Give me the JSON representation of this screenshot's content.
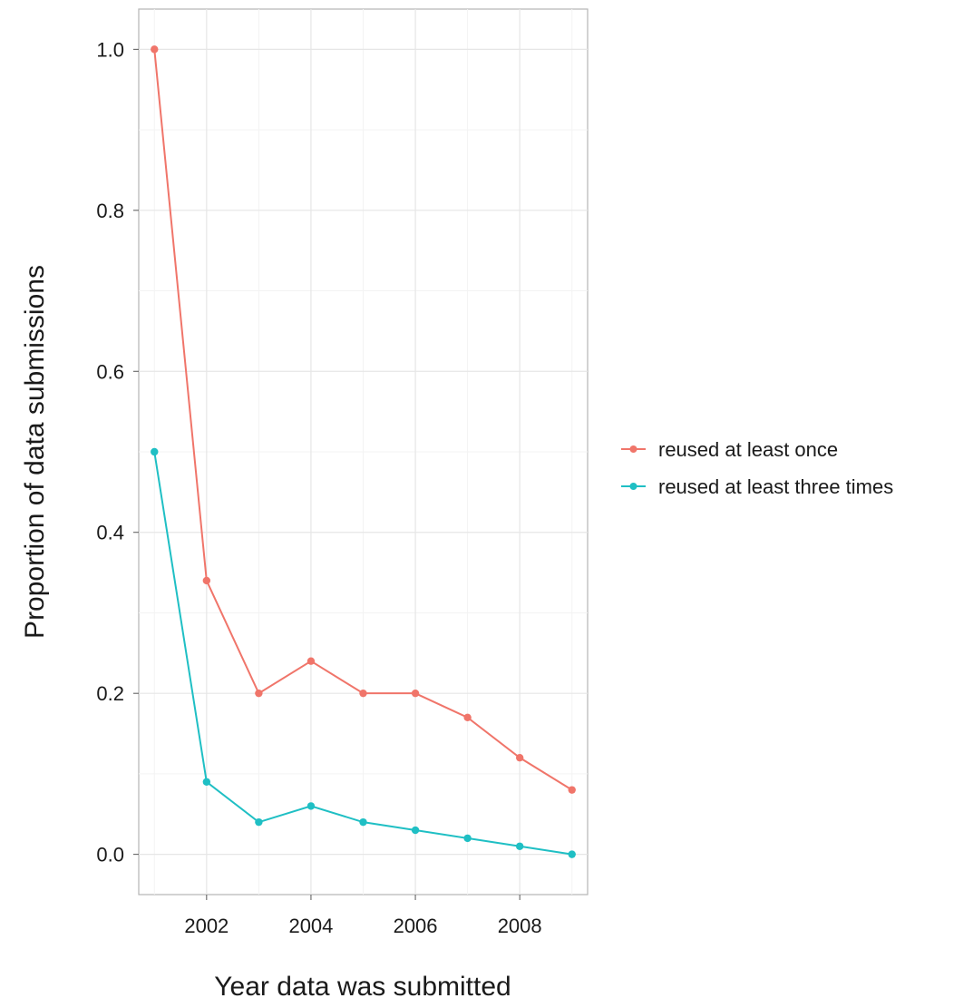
{
  "chart_data": {
    "type": "line",
    "xlabel": "Year data was submitted",
    "ylabel": "Proportion of data submissions",
    "xlim": [
      2000.7,
      2009.3
    ],
    "ylim": [
      -0.05,
      1.05
    ],
    "x_ticks": [
      2002,
      2004,
      2006,
      2008
    ],
    "y_ticks": [
      0.0,
      0.2,
      0.4,
      0.6,
      0.8,
      1.0
    ],
    "x_tick_labels": [
      "2002",
      "2004",
      "2006",
      "2008"
    ],
    "y_tick_labels": [
      "0.0",
      "0.2",
      "0.4",
      "0.6",
      "0.8",
      "1.0"
    ],
    "grid": true,
    "legend_position": "right",
    "x": [
      2001,
      2002,
      2003,
      2004,
      2005,
      2006,
      2007,
      2008,
      2009
    ],
    "series": [
      {
        "name": "reused at least once",
        "color": "#f0756a",
        "values": [
          1.0,
          0.34,
          0.2,
          0.24,
          0.2,
          0.2,
          0.17,
          0.12,
          0.08
        ]
      },
      {
        "name": "reused at least three times",
        "color": "#1fbfc4",
        "values": [
          0.5,
          0.09,
          0.04,
          0.06,
          0.04,
          0.03,
          0.02,
          0.01,
          0.0
        ]
      }
    ]
  }
}
